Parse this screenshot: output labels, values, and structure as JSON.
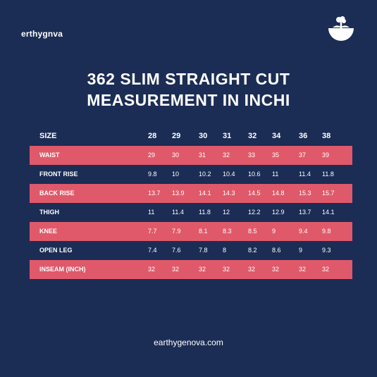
{
  "brand": "erthygnva",
  "title": {
    "line1": "362 SLIM STRAIGHT CUT",
    "line2": "MEASUREMENT IN INCHI"
  },
  "table": {
    "header": {
      "label": "SIZE",
      "sizes": [
        "28",
        "29",
        "30",
        "31",
        "32",
        "34",
        "36",
        "38"
      ]
    },
    "rows": [
      {
        "label": "WAIST",
        "values": [
          "29",
          "30",
          "31",
          "32",
          "33",
          "35",
          "37",
          "39"
        ]
      },
      {
        "label": "FRONT  RISE",
        "values": [
          "9.8",
          "10",
          "10.2",
          "10.4",
          "10.6",
          "11",
          "11.4",
          "11.8"
        ]
      },
      {
        "label": "BACK RISE",
        "values": [
          "13.7",
          "13.9",
          "14.1",
          "14.3",
          "14.5",
          "14.8",
          "15.3",
          "15.7"
        ]
      },
      {
        "label": "THIGH",
        "values": [
          "11",
          "11.4",
          "11.8",
          "12",
          "12.2",
          "12.9",
          "13.7",
          "14.1"
        ]
      },
      {
        "label": "KNEE",
        "values": [
          "7.7",
          "7.9",
          "8.1",
          "8.3",
          "8.5",
          "9",
          "9.4",
          "9.8"
        ]
      },
      {
        "label": "OPEN LEG",
        "values": [
          "7.4",
          "7.6",
          "7.8",
          "8",
          "8.2",
          "8.6",
          "9",
          "9.3"
        ]
      },
      {
        "label": "INSEAM (INCH)",
        "values": [
          "32",
          "32",
          "32",
          "32",
          "32",
          "32",
          "32",
          "32"
        ]
      }
    ]
  },
  "footer": "earthygenova.com",
  "colors": {
    "background": "#1b2d55",
    "highlight_row": "#e0596a",
    "text": "#ffffff"
  },
  "icons": {
    "logo": "tree-bowl-logo-icon"
  }
}
